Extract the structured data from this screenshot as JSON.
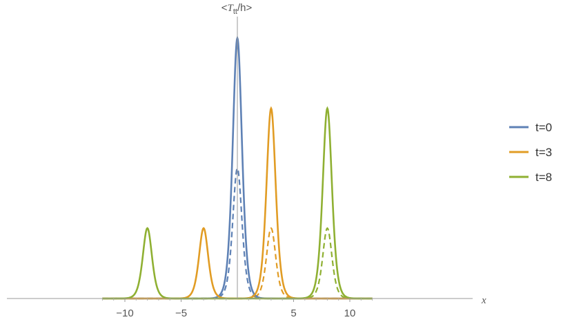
{
  "chart_data": {
    "type": "line",
    "title": "",
    "xlabel": "x",
    "ylabel_parts": {
      "open": "<",
      "T": "T",
      "sub": "tt",
      "close": "/h>"
    },
    "xlim": [
      -12,
      12
    ],
    "ylim": [
      0,
      1.0
    ],
    "x_ticks": [
      -10,
      -5,
      5,
      10
    ],
    "x_tick_labels": [
      "−10",
      "−5",
      "5",
      "10"
    ],
    "grid": false,
    "legend_position": "right",
    "series": [
      {
        "name": "t=0",
        "color": "#5E81B5",
        "solid": [
          {
            "center": 0,
            "amp": 1.0
          }
        ],
        "dashed": [
          {
            "center": 0,
            "amp": 0.5
          }
        ]
      },
      {
        "name": "t=3",
        "color": "#E19C24",
        "solid": [
          {
            "center": 3,
            "amp": 0.73
          },
          {
            "center": -3,
            "amp": 0.27
          }
        ],
        "dashed": [
          {
            "center": 3,
            "amp": 0.27
          }
        ]
      },
      {
        "name": "t=8",
        "color": "#8FB032",
        "solid": [
          {
            "center": 8,
            "amp": 0.73
          },
          {
            "center": -8,
            "amp": 0.27
          }
        ],
        "dashed": [
          {
            "center": 8,
            "amp": 0.27
          }
        ]
      }
    ]
  }
}
